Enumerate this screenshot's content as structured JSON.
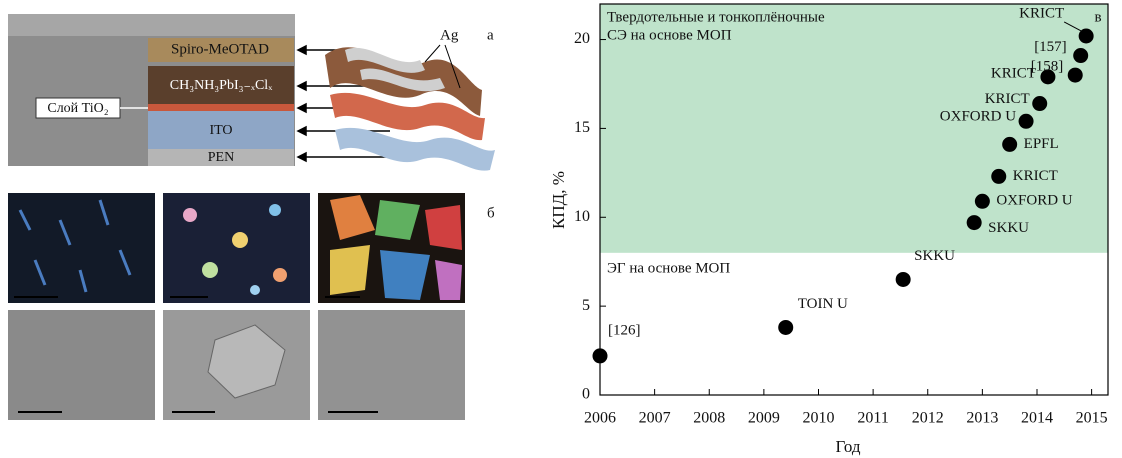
{
  "panel_a": {
    "layers": [
      "Spiro-MeOTAD",
      "CH₃NH₃PbI₃₋ₓClₓ",
      "Слой TiO₂",
      "ITO",
      "PEN"
    ],
    "electrode": "Ag",
    "letter": "а"
  },
  "panel_b": {
    "letter": "б"
  },
  "chart_data": {
    "type": "scatter",
    "letter": "в",
    "xlabel": "Год",
    "ylabel": "КПД, %",
    "x": [
      2006.0,
      2009.4,
      2011.55,
      2012.85,
      2013.0,
      2013.3,
      2013.5,
      2013.8,
      2014.05,
      2014.2,
      2014.7,
      2014.8,
      2014.9
    ],
    "values": [
      2.2,
      3.8,
      6.5,
      9.7,
      10.9,
      12.3,
      14.1,
      15.4,
      16.4,
      17.9,
      18.0,
      19.1,
      20.2
    ],
    "labels": [
      "[126]",
      "TOIN U",
      "SKKU",
      "SKKU",
      "OXFORD U",
      "KRICT",
      "EPFL",
      "OXFORD U",
      "KRICT",
      "KRICT",
      "[158]",
      "[157]",
      "KRICT"
    ],
    "color": "#000000",
    "xlim": [
      2006,
      2015.3
    ],
    "xticks": [
      2006,
      2007,
      2008,
      2009,
      2010,
      2011,
      2012,
      2013,
      2014,
      2015
    ],
    "ylim": [
      0,
      22
    ],
    "yticks": [
      0,
      5,
      10,
      15,
      20
    ],
    "region": {
      "ymin": 8,
      "color": "#bfe3cb",
      "label_upper": [
        "Твердотельные и тонкоплёночные",
        "СЭ на основе МОП"
      ],
      "label_lower": "ЭГ на основе МОП"
    }
  }
}
